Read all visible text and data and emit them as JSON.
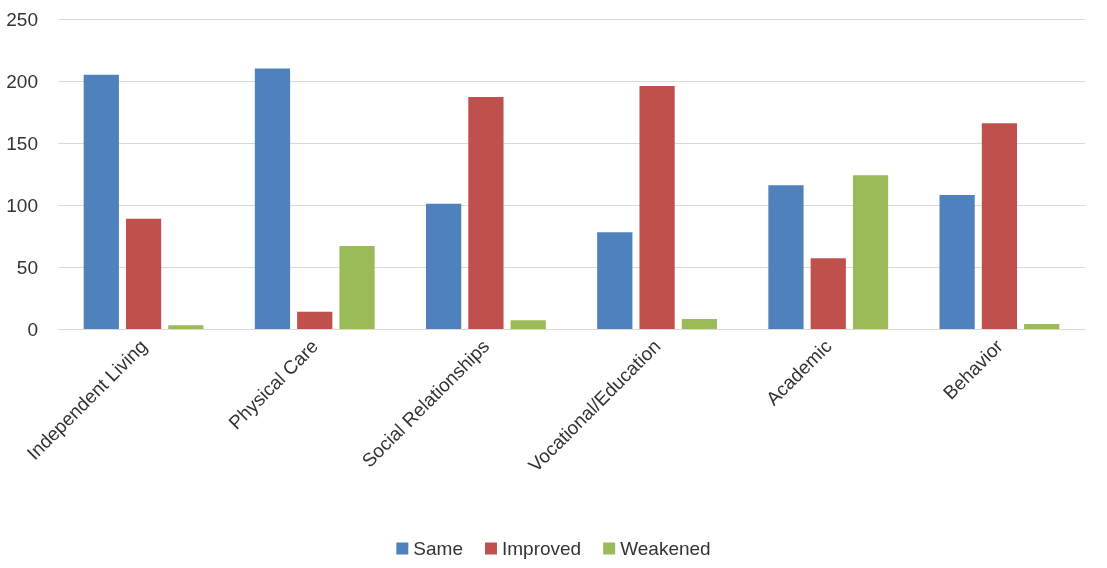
{
  "chart_data": {
    "type": "bar",
    "categories": [
      "Independent Living",
      "Physical Care",
      "Social Relationships",
      "Vocational/Education",
      "Academic",
      "Behavior"
    ],
    "series": [
      {
        "name": "Same",
        "color": "#4f81bd",
        "values": [
          205,
          210,
          101,
          78,
          116,
          108
        ]
      },
      {
        "name": "Improved",
        "color": "#c0504d",
        "values": [
          89,
          14,
          187,
          196,
          57,
          166
        ]
      },
      {
        "name": "Weakened",
        "color": "#9bbb59",
        "values": [
          3,
          67,
          7,
          8,
          124,
          4
        ]
      }
    ],
    "ylim": [
      0,
      250
    ],
    "yticks": [
      0,
      50,
      100,
      150,
      200,
      250
    ],
    "grid": "y",
    "legend": "bottom"
  }
}
